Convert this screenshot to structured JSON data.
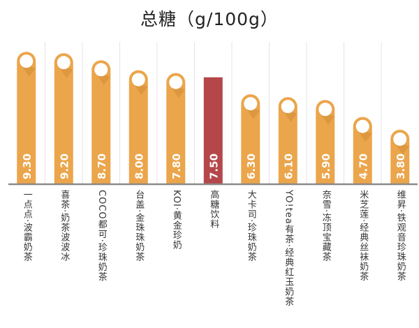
{
  "chart_data": {
    "type": "bar",
    "title": "总糖（g/100g）",
    "xlabel": "",
    "ylabel": "",
    "ylim": [
      0,
      10
    ],
    "grid": false,
    "categories": [
      "一点点·波霸奶茶",
      "喜茶·奶茶波波冰",
      "COCO都可·珍珠奶茶",
      "台盖·金珠珠奶茶",
      "KOI·黄金珍奶",
      "高糖饮料",
      "大卡司·珍珠奶茶",
      "YO!tea有茶·经典红玉奶茶",
      "奈雪·冻顶宝藏茶",
      "米芝莲·经典丝袜奶茶",
      "维昇·铁观音珍珠奶茶"
    ],
    "values": [
      9.3,
      9.2,
      8.7,
      8.0,
      7.8,
      7.5,
      6.3,
      6.1,
      5.9,
      4.7,
      3.8
    ],
    "value_labels": [
      "9.30",
      "9.20",
      "8.70",
      "8.00",
      "7.80",
      "7.50",
      "6.30",
      "6.10",
      "5.90",
      "4.70",
      "3.80"
    ],
    "highlight_index": 5,
    "colors": {
      "bar": "#EBA54B",
      "highlight": "#B5474A",
      "baseline": "#8a8a8a",
      "separator": "#e4e4e4"
    }
  }
}
